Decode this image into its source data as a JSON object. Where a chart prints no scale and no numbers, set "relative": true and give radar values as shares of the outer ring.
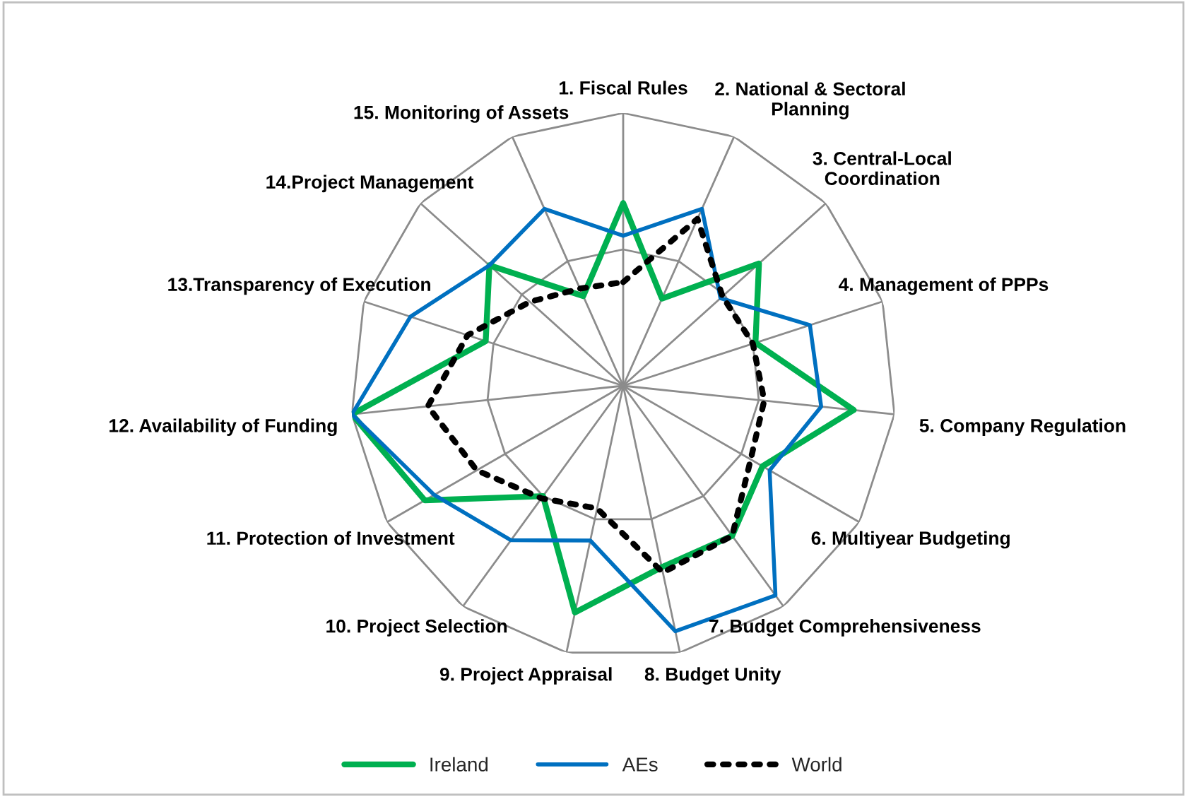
{
  "chart_data": {
    "type": "radar",
    "relative": true,
    "grid": true,
    "legend": "bottom",
    "categories": [
      "1. Fiscal Rules",
      "2. National & Sectoral Planning",
      "3. Central-Local Coordination",
      "4. Management of PPPs",
      "5. Company Regulation",
      "6. Multiyear Budgeting",
      "7. Budget Comprehensiveness",
      "8. Budget Unity",
      "9. Project Appraisal",
      "10. Project Selection",
      "11. Protection of Investment",
      "12. Availability of Funding",
      "13.Transparency of Execution",
      "14.Project Management",
      "15. Monitoring of Assets"
    ],
    "series": [
      {
        "name": "Ireland",
        "color": "#00b050",
        "line_style": "solid",
        "values": [
          0.67,
          0.35,
          0.67,
          0.51,
          0.85,
          0.59,
          0.68,
          0.68,
          0.85,
          0.5,
          0.84,
          1.0,
          0.53,
          0.66,
          0.36
        ]
      },
      {
        "name": "AEs",
        "color": "#0070c0",
        "line_style": "solid",
        "values": [
          0.55,
          0.71,
          0.48,
          0.72,
          0.73,
          0.62,
          0.95,
          0.92,
          0.58,
          0.7,
          0.8,
          1.0,
          0.82,
          0.66,
          0.71
        ]
      },
      {
        "name": "World",
        "color": "#000000",
        "line_style": "dotted",
        "values": [
          0.38,
          0.67,
          0.49,
          0.5,
          0.52,
          0.54,
          0.68,
          0.7,
          0.46,
          0.51,
          0.62,
          0.72,
          0.6,
          0.46,
          0.39
        ]
      }
    ]
  }
}
